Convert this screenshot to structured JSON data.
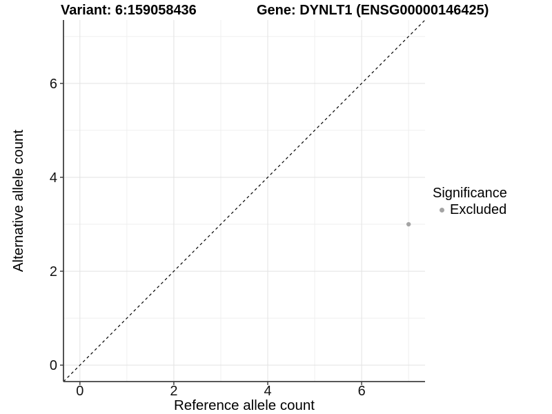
{
  "header": {
    "variant_title": "Variant: 6:159058436",
    "gene_title": "Gene: DYNLT1 (ENSG00000146425)"
  },
  "chart_data": {
    "type": "scatter",
    "xlabel": "Reference allele count",
    "ylabel": "Alternative allele count",
    "xlim": [
      -0.35,
      7.35
    ],
    "ylim": [
      -0.35,
      7.35
    ],
    "x_major_ticks": [
      0,
      2,
      4,
      6
    ],
    "y_major_ticks": [
      0,
      2,
      4,
      6
    ],
    "x_minor_ticks": [
      1,
      3,
      5,
      7
    ],
    "y_minor_ticks": [
      1,
      3,
      5,
      7
    ],
    "grid": "major+minor",
    "reference_line": {
      "type": "identity",
      "equation": "y = x",
      "style": "dashed",
      "color": "#000000"
    },
    "series": [
      {
        "name": "Excluded",
        "color": "#a4a4a4",
        "points": [
          [
            7,
            3
          ]
        ]
      }
    ],
    "legend": {
      "title": "Significance",
      "position": "right",
      "items": [
        {
          "label": "Excluded",
          "color": "#a4a4a4",
          "marker": "circle"
        }
      ]
    },
    "colors": {
      "background": "#ffffff",
      "grid_major": "#e2e2e2",
      "grid_minor": "#efefef",
      "axis": "#3f3f3f",
      "tick_label": "#111111"
    }
  }
}
